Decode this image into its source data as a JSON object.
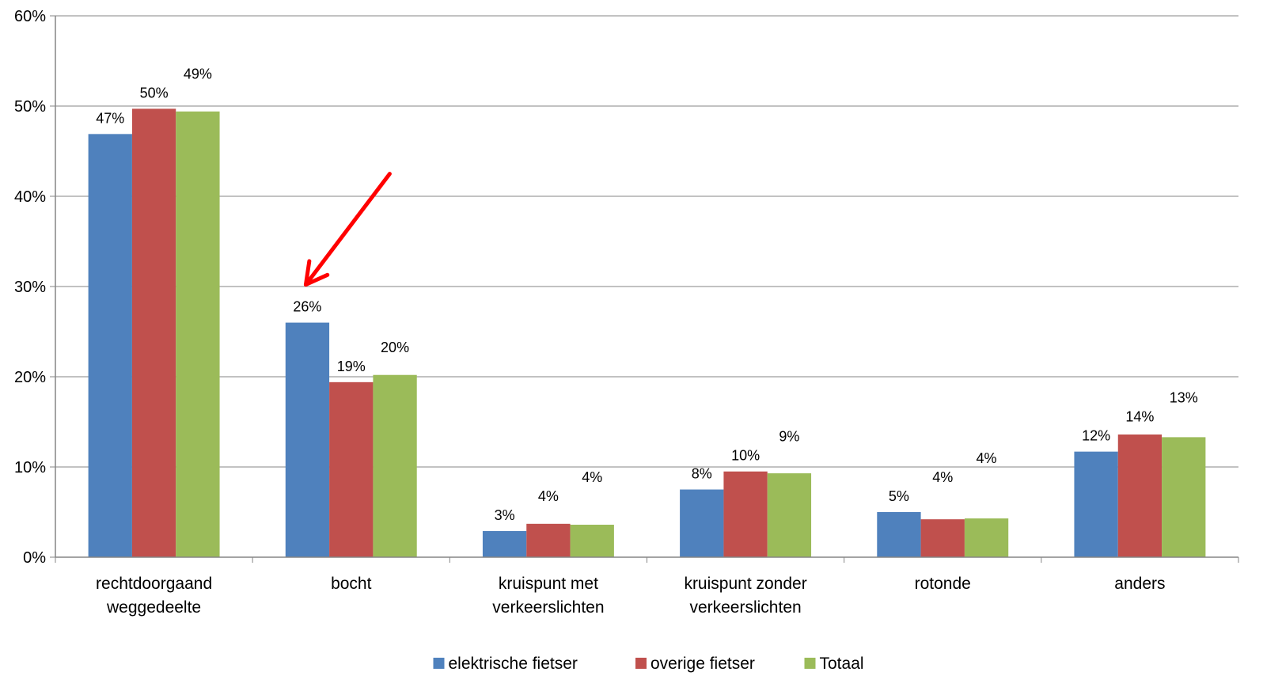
{
  "chart_data": {
    "type": "bar",
    "categories": [
      [
        "rechtdoorgaand",
        "weggedeelte"
      ],
      [
        "bocht"
      ],
      [
        "kruispunt met",
        "verkeerslichten"
      ],
      [
        "kruispunt zonder",
        "verkeerslichten"
      ],
      [
        "rotonde"
      ],
      [
        "anders"
      ]
    ],
    "series": [
      {
        "name": "elektrische fietser",
        "color": "#4F81BD",
        "values": [
          46.9,
          26.0,
          2.9,
          7.5,
          5.0,
          11.7
        ],
        "labels": [
          "47%",
          "26%",
          "3%",
          "8%",
          "5%",
          "12%"
        ]
      },
      {
        "name": "overige fietser",
        "color": "#C0504D",
        "values": [
          49.7,
          19.4,
          3.7,
          9.5,
          4.2,
          13.6
        ],
        "labels": [
          "50%",
          "19%",
          "4%",
          "10%",
          "4%",
          "14%"
        ]
      },
      {
        "name": "Totaal",
        "color": "#9BBB59",
        "values": [
          49.4,
          20.2,
          3.6,
          9.3,
          4.3,
          13.3
        ],
        "labels": [
          "49%",
          "20%",
          "4%",
          "9%",
          "4%",
          "13%"
        ]
      }
    ],
    "yticks": [
      "0%",
      "10%",
      "20%",
      "30%",
      "40%",
      "50%",
      "60%"
    ],
    "ylim": [
      0,
      60
    ],
    "grid": true,
    "legend": "bottom",
    "annotation": {
      "type": "arrow",
      "color": "#FF0000",
      "points_to": "bocht — elektrische fietser"
    }
  }
}
